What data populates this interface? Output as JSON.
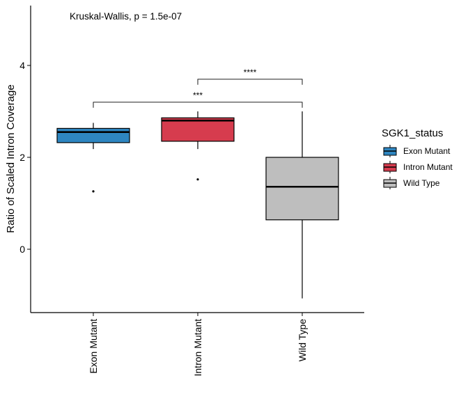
{
  "chart_data": {
    "type": "boxplot",
    "title": "",
    "xlabel": "",
    "ylabel": "Ratio of Scaled Intron Coverage",
    "ylim": [
      -1.4,
      5.3
    ],
    "yticks": [
      0,
      2,
      4
    ],
    "ytick_labels": [
      "0",
      "2",
      "4"
    ],
    "categories": [
      "Exon Mutant",
      "Intron Mutant",
      "Wild Type"
    ],
    "groups": [
      {
        "name": "Exon Mutant",
        "color": "#2e86c1",
        "whisker_low": 2.18,
        "q1": 2.32,
        "median": 2.55,
        "q3": 2.63,
        "whisker_high": 2.75,
        "outliers": [
          1.26
        ]
      },
      {
        "name": "Intron Mutant",
        "color": "#d63c4e",
        "whisker_low": 2.18,
        "q1": 2.35,
        "median": 2.8,
        "q3": 2.86,
        "whisker_high": 3.0,
        "outliers": [
          1.52
        ]
      },
      {
        "name": "Wild Type",
        "color": "#bebebe",
        "whisker_low": -1.07,
        "q1": 0.64,
        "median": 1.36,
        "q3": 2.0,
        "whisker_high": 3.0,
        "outliers": []
      }
    ],
    "annotation": "Kruskal-Wallis, p = 1.5e-07",
    "comparisons": [
      {
        "from": "Exon Mutant",
        "to": "Wild Type",
        "y": 3.2,
        "label": "***"
      },
      {
        "from": "Intron Mutant",
        "to": "Wild Type",
        "y": 3.7,
        "label": "****"
      }
    ],
    "legend": {
      "title": "SGK1_status",
      "position": "right",
      "items": [
        "Exon Mutant",
        "Intron Mutant",
        "Wild Type"
      ]
    },
    "grid": false
  }
}
